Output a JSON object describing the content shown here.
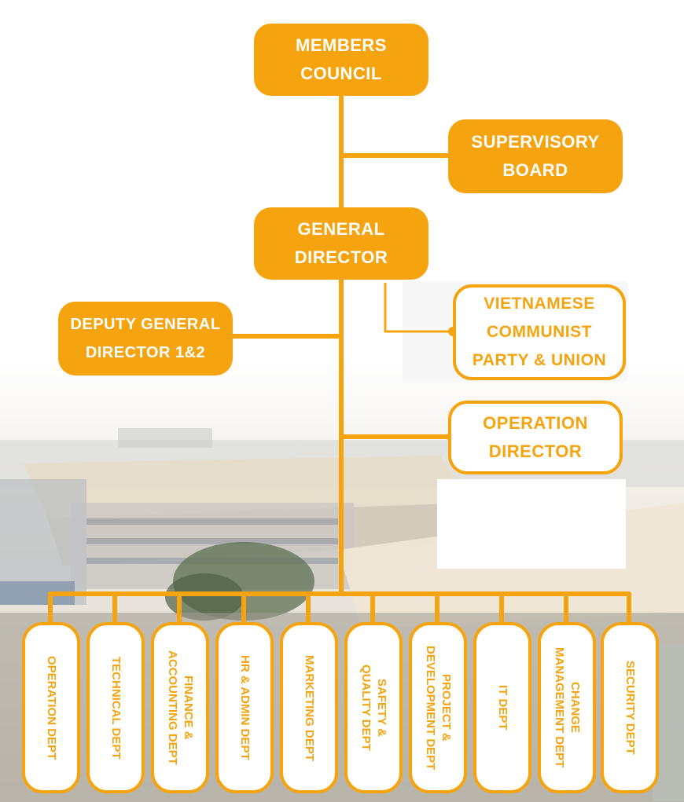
{
  "colors": {
    "accent": "#f5a410",
    "white": "#ffffff"
  },
  "top": {
    "members_council": "MEMBERS\nCOUNCIL",
    "supervisory_board": "SUPERVISORY\nBOARD",
    "general_director": "GENERAL\nDIRECTOR",
    "deputy_general_director": "DEPUTY GENERAL\nDIRECTOR 1&2",
    "party_union": "VIETNAMESE\nCOMMUNIST\nPARTY & UNION",
    "operation_director": "OPERATION\nDIRECTOR"
  },
  "departments": [
    "OPERATION DEPT",
    "TECHNICAL DEPT",
    "FINANCE &\nACCOUNTING DEPT",
    "HR & ADMIN DEPT",
    "MARKETING DEPT",
    "SAFETY &\nQUALITY DEPT",
    "PROJECT &\nDEVELOPMENT DEPT",
    "IT DEPT",
    "CHANGE\nMANAGEMENT DEPT",
    "SECURITY DEPT"
  ]
}
